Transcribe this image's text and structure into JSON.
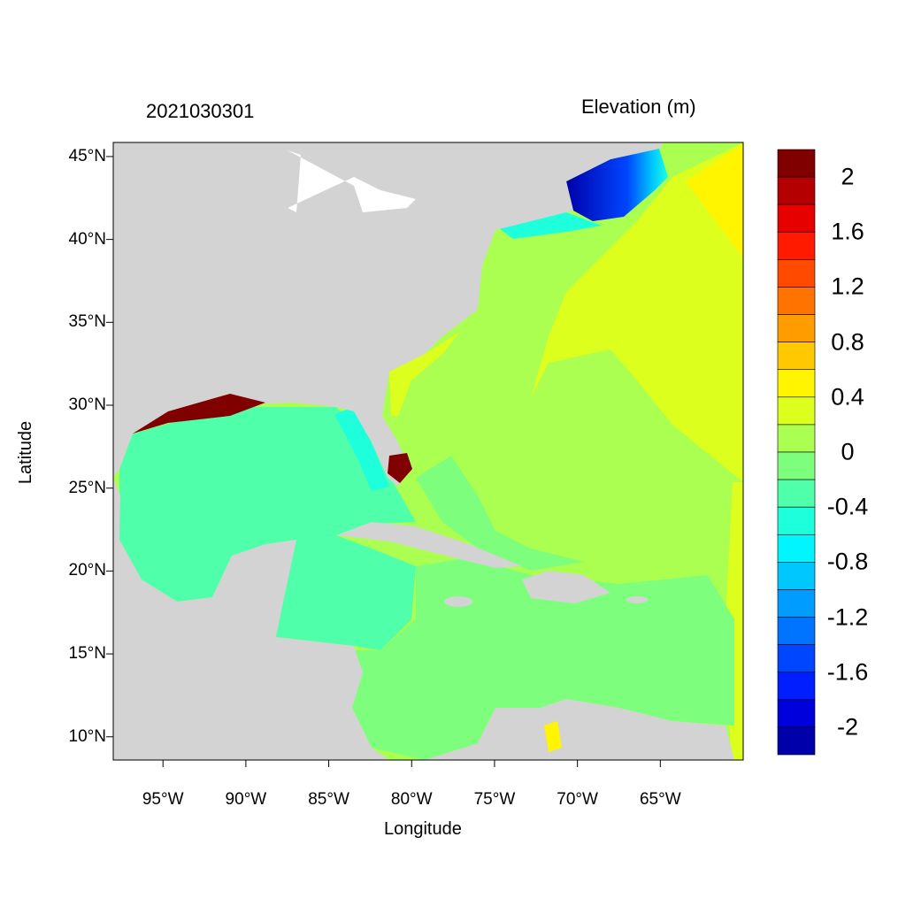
{
  "title_date": "2021030301",
  "title_variable": "Elevation (m)",
  "xlabel": "Longitude",
  "ylabel": "Latitude",
  "lat_ticks": [
    "45°N",
    "40°N",
    "35°N",
    "30°N",
    "25°N",
    "20°N",
    "15°N",
    "10°N"
  ],
  "lat_values": [
    45,
    40,
    35,
    30,
    25,
    20,
    15,
    10
  ],
  "lon_ticks": [
    "95°W",
    "90°W",
    "85°W",
    "80°W",
    "75°W",
    "70°W",
    "65°W"
  ],
  "lon_values": [
    -95,
    -90,
    -85,
    -80,
    -75,
    -70,
    -65
  ],
  "extent": {
    "lon_min": -98,
    "lon_max": -60,
    "lat_min": 8.6,
    "lat_max": 45.85
  },
  "colorbar": {
    "labels": [
      "2",
      "1.6",
      "1.2",
      "0.8",
      "0.4",
      "0",
      "-0.4",
      "-0.8",
      "-1.2",
      "-1.6",
      "-2"
    ],
    "colors": [
      "#800000",
      "#b40000",
      "#e60000",
      "#ff1a00",
      "#ff4a00",
      "#ff7300",
      "#ff9c00",
      "#ffc800",
      "#fff500",
      "#dcff1e",
      "#aaff50",
      "#7dff7d",
      "#50ffaa",
      "#1effdc",
      "#00f5ff",
      "#00c8ff",
      "#009cff",
      "#0073ff",
      "#0046ff",
      "#001eff",
      "#0000dc",
      "#0000aa"
    ]
  },
  "colors": {
    "land": "#d3d3d3"
  }
}
